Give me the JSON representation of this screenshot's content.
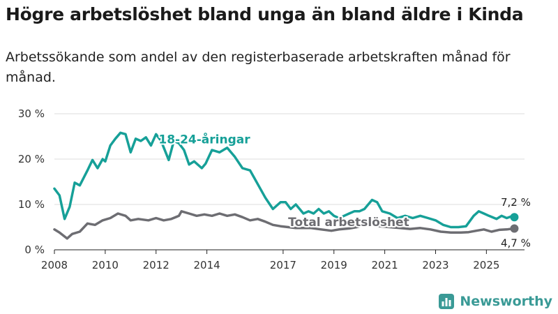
{
  "header": {
    "title": "Högre arbetslöshet bland unga än bland äldre i Kinda",
    "subtitle": "Arbetssökande som andel av den registerbaserade arbetskraften månad för månad."
  },
  "brand": {
    "name": "Newsworthy"
  },
  "colors": {
    "youth": "#16a098",
    "total": "#6d6d72",
    "grid": "#dcdcdc",
    "brand": "#3a9a96"
  },
  "chart_data": {
    "type": "line",
    "title": "Högre arbetslöshet bland unga än bland äldre i Kinda",
    "subtitle": "Arbetssökande som andel av den registerbaserade arbetskraften månad för månad.",
    "xlabel": "",
    "ylabel": "",
    "xlim": [
      2008,
      2026.5
    ],
    "ylim": [
      0,
      30
    ],
    "x_ticks": [
      2008,
      2010,
      2012,
      2014,
      2017,
      2019,
      2021,
      2023,
      2025
    ],
    "x_tick_labels": [
      "2008",
      "2010",
      "2012",
      "2014",
      "2017",
      "2019",
      "2021",
      "2023",
      "2025"
    ],
    "y_ticks": [
      0,
      10,
      20,
      30
    ],
    "y_tick_labels": [
      "0 %",
      "10 %",
      "20 %",
      "30 %"
    ],
    "grid": true,
    "series": [
      {
        "name": "18-24-åringar",
        "label_at": [
          2012.1,
          23.5
        ],
        "color_key": "youth",
        "end_label": "7,2 %",
        "points": [
          [
            2008.0,
            13.5
          ],
          [
            2008.2,
            12.0
          ],
          [
            2008.4,
            6.8
          ],
          [
            2008.6,
            9.5
          ],
          [
            2008.8,
            14.8
          ],
          [
            2009.0,
            14.2
          ],
          [
            2009.3,
            17.5
          ],
          [
            2009.5,
            19.8
          ],
          [
            2009.7,
            18.0
          ],
          [
            2009.9,
            20.0
          ],
          [
            2010.0,
            19.5
          ],
          [
            2010.2,
            23.0
          ],
          [
            2010.4,
            24.5
          ],
          [
            2010.6,
            25.8
          ],
          [
            2010.8,
            25.5
          ],
          [
            2011.0,
            21.5
          ],
          [
            2011.2,
            24.5
          ],
          [
            2011.4,
            24.0
          ],
          [
            2011.6,
            24.8
          ],
          [
            2011.8,
            23.0
          ],
          [
            2012.0,
            25.5
          ],
          [
            2012.2,
            24.0
          ],
          [
            2012.5,
            19.8
          ],
          [
            2012.7,
            24.0
          ],
          [
            2012.9,
            23.5
          ],
          [
            2013.1,
            22.0
          ],
          [
            2013.3,
            18.8
          ],
          [
            2013.5,
            19.5
          ],
          [
            2013.8,
            18.0
          ],
          [
            2013.95,
            19.0
          ],
          [
            2014.2,
            22.0
          ],
          [
            2014.5,
            21.5
          ],
          [
            2014.8,
            22.5
          ],
          [
            2015.1,
            20.5
          ],
          [
            2015.4,
            18.0
          ],
          [
            2015.7,
            17.5
          ],
          [
            2016.0,
            14.5
          ],
          [
            2016.3,
            11.5
          ],
          [
            2016.6,
            9.0
          ],
          [
            2016.9,
            10.5
          ],
          [
            2017.1,
            10.5
          ],
          [
            2017.3,
            9.0
          ],
          [
            2017.5,
            10.0
          ],
          [
            2017.8,
            8.0
          ],
          [
            2018.0,
            8.5
          ],
          [
            2018.2,
            8.0
          ],
          [
            2018.4,
            9.0
          ],
          [
            2018.6,
            8.0
          ],
          [
            2018.8,
            8.5
          ],
          [
            2019.0,
            7.5
          ],
          [
            2019.2,
            7.0
          ],
          [
            2019.4,
            7.5
          ],
          [
            2019.6,
            8.0
          ],
          [
            2019.8,
            8.5
          ],
          [
            2020.0,
            8.5
          ],
          [
            2020.2,
            9.0
          ],
          [
            2020.5,
            11.0
          ],
          [
            2020.7,
            10.5
          ],
          [
            2020.9,
            8.5
          ],
          [
            2021.2,
            8.0
          ],
          [
            2021.5,
            7.0
          ],
          [
            2021.8,
            7.5
          ],
          [
            2022.1,
            7.0
          ],
          [
            2022.4,
            7.5
          ],
          [
            2022.7,
            7.0
          ],
          [
            2023.0,
            6.5
          ],
          [
            2023.3,
            5.5
          ],
          [
            2023.6,
            5.0
          ],
          [
            2023.9,
            5.0
          ],
          [
            2024.2,
            5.2
          ],
          [
            2024.5,
            7.5
          ],
          [
            2024.7,
            8.5
          ],
          [
            2024.9,
            8.0
          ],
          [
            2025.1,
            7.5
          ],
          [
            2025.4,
            6.8
          ],
          [
            2025.6,
            7.5
          ],
          [
            2025.8,
            7.0
          ],
          [
            2026.0,
            7.4
          ],
          [
            2026.1,
            7.2
          ]
        ]
      },
      {
        "name": "Total arbetslöshet",
        "label_at": [
          2017.2,
          5.2
        ],
        "color_key": "total",
        "end_label": "4,7 %",
        "points": [
          [
            2008.0,
            4.5
          ],
          [
            2008.2,
            3.8
          ],
          [
            2008.5,
            2.5
          ],
          [
            2008.7,
            3.5
          ],
          [
            2009.0,
            4.0
          ],
          [
            2009.3,
            5.8
          ],
          [
            2009.6,
            5.5
          ],
          [
            2009.9,
            6.5
          ],
          [
            2010.2,
            7.0
          ],
          [
            2010.5,
            8.0
          ],
          [
            2010.8,
            7.5
          ],
          [
            2011.0,
            6.5
          ],
          [
            2011.3,
            6.8
          ],
          [
            2011.7,
            6.5
          ],
          [
            2012.0,
            7.0
          ],
          [
            2012.3,
            6.5
          ],
          [
            2012.6,
            6.8
          ],
          [
            2012.9,
            7.5
          ],
          [
            2013.0,
            8.5
          ],
          [
            2013.3,
            8.0
          ],
          [
            2013.6,
            7.5
          ],
          [
            2013.9,
            7.8
          ],
          [
            2014.2,
            7.5
          ],
          [
            2014.5,
            8.0
          ],
          [
            2014.8,
            7.5
          ],
          [
            2015.1,
            7.8
          ],
          [
            2015.4,
            7.2
          ],
          [
            2015.7,
            6.5
          ],
          [
            2016.0,
            6.8
          ],
          [
            2016.3,
            6.2
          ],
          [
            2016.6,
            5.5
          ],
          [
            2016.9,
            5.2
          ],
          [
            2017.2,
            5.0
          ],
          [
            2017.5,
            4.8
          ],
          [
            2017.8,
            4.8
          ],
          [
            2018.1,
            4.8
          ],
          [
            2018.5,
            4.5
          ],
          [
            2018.9,
            4.2
          ],
          [
            2019.2,
            4.5
          ],
          [
            2019.6,
            4.7
          ],
          [
            2019.9,
            5.0
          ],
          [
            2020.2,
            5.5
          ],
          [
            2020.5,
            5.8
          ],
          [
            2020.8,
            5.2
          ],
          [
            2021.2,
            5.0
          ],
          [
            2021.6,
            4.8
          ],
          [
            2022.0,
            4.6
          ],
          [
            2022.4,
            4.8
          ],
          [
            2022.8,
            4.5
          ],
          [
            2023.2,
            4.0
          ],
          [
            2023.6,
            3.8
          ],
          [
            2024.0,
            3.8
          ],
          [
            2024.3,
            3.9
          ],
          [
            2024.6,
            4.2
          ],
          [
            2024.9,
            4.5
          ],
          [
            2025.2,
            4.0
          ],
          [
            2025.5,
            4.4
          ],
          [
            2025.8,
            4.5
          ],
          [
            2026.1,
            4.7
          ]
        ]
      }
    ]
  }
}
